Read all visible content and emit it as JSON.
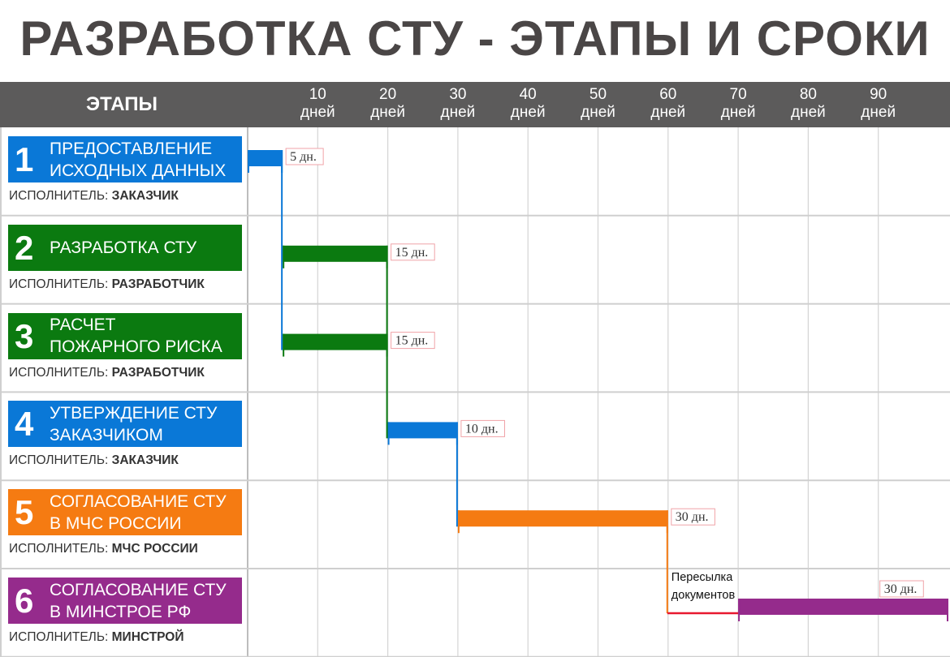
{
  "title": "РАЗРАБОТКА СТУ - ЭТАПЫ И СРОКИ",
  "header": {
    "stages_label": "ЭТАПЫ",
    "ticks": [
      {
        "value": "10",
        "unit": "дней"
      },
      {
        "value": "20",
        "unit": "дней"
      },
      {
        "value": "30",
        "unit": "дней"
      },
      {
        "value": "40",
        "unit": "дней"
      },
      {
        "value": "50",
        "unit": "дней"
      },
      {
        "value": "60",
        "unit": "дней"
      },
      {
        "value": "70",
        "unit": "дней"
      },
      {
        "value": "80",
        "unit": "дней"
      },
      {
        "value": "90",
        "unit": "дней"
      }
    ]
  },
  "executor_prefix": "ИСПОЛНИТЕЛЬ:",
  "stages": [
    {
      "num": "1",
      "name_lines": [
        "ПРЕДОСТАВЛЕНИЕ",
        "ИСХОДНЫХ ДАННЫХ"
      ],
      "executor": "ЗАКАЗЧИК",
      "color": "#0a78d7"
    },
    {
      "num": "2",
      "name_lines": [
        "РАЗРАБОТКА СТУ"
      ],
      "executor": "РАЗРАБОТЧИК",
      "color": "#0b7a10"
    },
    {
      "num": "3",
      "name_lines": [
        "РАСЧЕТ",
        "ПОЖАРНОГО РИСКА"
      ],
      "executor": "РАЗРАБОТЧИК",
      "color": "#0b7a10"
    },
    {
      "num": "4",
      "name_lines": [
        "УТВЕРЖДЕНИЕ СТУ",
        "ЗАКАЗЧИКОМ"
      ],
      "executor": "ЗАКАЗЧИК",
      "color": "#0a78d7"
    },
    {
      "num": "5",
      "name_lines": [
        "СОГЛАСОВАНИЕ СТУ",
        "В МЧС РОССИИ"
      ],
      "executor": "МЧС РОССИИ",
      "color": "#f57b12"
    },
    {
      "num": "6",
      "name_lines": [
        "СОГЛАСОВАНИЕ СТУ",
        "В МИНСТРОЕ РФ"
      ],
      "executor": "МИНСТРОЙ",
      "color": "#952b8c"
    }
  ],
  "chart_data": {
    "type": "gantt",
    "x_unit": "дней",
    "xlim": [
      0,
      100
    ],
    "x_ticks": [
      10,
      20,
      30,
      40,
      50,
      60,
      70,
      80,
      90
    ],
    "tasks": [
      {
        "stage": "1",
        "start": 0,
        "end": 5,
        "duration_label": "5 дн.",
        "color": "#0a78d7"
      },
      {
        "stage": "2",
        "start": 5,
        "end": 20,
        "duration_label": "15 дн.",
        "color": "#0b7a10"
      },
      {
        "stage": "3",
        "start": 5,
        "end": 20,
        "duration_label": "15 дн.",
        "color": "#0b7a10"
      },
      {
        "stage": "4",
        "start": 20,
        "end": 30,
        "duration_label": "10 дн.",
        "color": "#0a78d7"
      },
      {
        "stage": "5",
        "start": 30,
        "end": 60,
        "duration_label": "30 дн.",
        "color": "#f57b12"
      },
      {
        "stage": "6",
        "start": 70,
        "end": 100,
        "duration_label": "30 дн.",
        "color": "#952b8c"
      }
    ],
    "gap": {
      "start": 60,
      "end": 70,
      "label_lines": [
        "Пересылка",
        "документов"
      ],
      "color": "#e8182f"
    }
  }
}
